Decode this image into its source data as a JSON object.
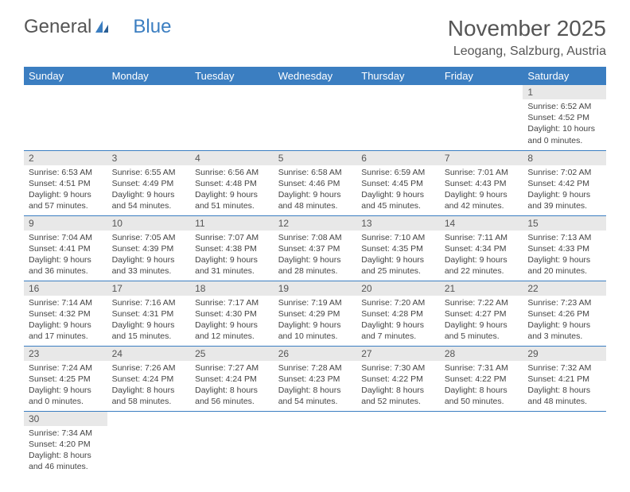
{
  "logo": {
    "text_general": "General",
    "text_blue": "Blue",
    "mark_color": "#3b7ec1"
  },
  "title": "November 2025",
  "location": "Leogang, Salzburg, Austria",
  "colors": {
    "header_bg": "#3b7ec1",
    "header_fg": "#ffffff",
    "daynum_bg": "#e8e8e8",
    "rule": "#3b7ec1"
  },
  "days_of_week": [
    "Sunday",
    "Monday",
    "Tuesday",
    "Wednesday",
    "Thursday",
    "Friday",
    "Saturday"
  ],
  "weeks": [
    [
      null,
      null,
      null,
      null,
      null,
      null,
      {
        "n": "1",
        "sr": "Sunrise: 6:52 AM",
        "ss": "Sunset: 4:52 PM",
        "dl1": "Daylight: 10 hours",
        "dl2": "and 0 minutes."
      }
    ],
    [
      {
        "n": "2",
        "sr": "Sunrise: 6:53 AM",
        "ss": "Sunset: 4:51 PM",
        "dl1": "Daylight: 9 hours",
        "dl2": "and 57 minutes."
      },
      {
        "n": "3",
        "sr": "Sunrise: 6:55 AM",
        "ss": "Sunset: 4:49 PM",
        "dl1": "Daylight: 9 hours",
        "dl2": "and 54 minutes."
      },
      {
        "n": "4",
        "sr": "Sunrise: 6:56 AM",
        "ss": "Sunset: 4:48 PM",
        "dl1": "Daylight: 9 hours",
        "dl2": "and 51 minutes."
      },
      {
        "n": "5",
        "sr": "Sunrise: 6:58 AM",
        "ss": "Sunset: 4:46 PM",
        "dl1": "Daylight: 9 hours",
        "dl2": "and 48 minutes."
      },
      {
        "n": "6",
        "sr": "Sunrise: 6:59 AM",
        "ss": "Sunset: 4:45 PM",
        "dl1": "Daylight: 9 hours",
        "dl2": "and 45 minutes."
      },
      {
        "n": "7",
        "sr": "Sunrise: 7:01 AM",
        "ss": "Sunset: 4:43 PM",
        "dl1": "Daylight: 9 hours",
        "dl2": "and 42 minutes."
      },
      {
        "n": "8",
        "sr": "Sunrise: 7:02 AM",
        "ss": "Sunset: 4:42 PM",
        "dl1": "Daylight: 9 hours",
        "dl2": "and 39 minutes."
      }
    ],
    [
      {
        "n": "9",
        "sr": "Sunrise: 7:04 AM",
        "ss": "Sunset: 4:41 PM",
        "dl1": "Daylight: 9 hours",
        "dl2": "and 36 minutes."
      },
      {
        "n": "10",
        "sr": "Sunrise: 7:05 AM",
        "ss": "Sunset: 4:39 PM",
        "dl1": "Daylight: 9 hours",
        "dl2": "and 33 minutes."
      },
      {
        "n": "11",
        "sr": "Sunrise: 7:07 AM",
        "ss": "Sunset: 4:38 PM",
        "dl1": "Daylight: 9 hours",
        "dl2": "and 31 minutes."
      },
      {
        "n": "12",
        "sr": "Sunrise: 7:08 AM",
        "ss": "Sunset: 4:37 PM",
        "dl1": "Daylight: 9 hours",
        "dl2": "and 28 minutes."
      },
      {
        "n": "13",
        "sr": "Sunrise: 7:10 AM",
        "ss": "Sunset: 4:35 PM",
        "dl1": "Daylight: 9 hours",
        "dl2": "and 25 minutes."
      },
      {
        "n": "14",
        "sr": "Sunrise: 7:11 AM",
        "ss": "Sunset: 4:34 PM",
        "dl1": "Daylight: 9 hours",
        "dl2": "and 22 minutes."
      },
      {
        "n": "15",
        "sr": "Sunrise: 7:13 AM",
        "ss": "Sunset: 4:33 PM",
        "dl1": "Daylight: 9 hours",
        "dl2": "and 20 minutes."
      }
    ],
    [
      {
        "n": "16",
        "sr": "Sunrise: 7:14 AM",
        "ss": "Sunset: 4:32 PM",
        "dl1": "Daylight: 9 hours",
        "dl2": "and 17 minutes."
      },
      {
        "n": "17",
        "sr": "Sunrise: 7:16 AM",
        "ss": "Sunset: 4:31 PM",
        "dl1": "Daylight: 9 hours",
        "dl2": "and 15 minutes."
      },
      {
        "n": "18",
        "sr": "Sunrise: 7:17 AM",
        "ss": "Sunset: 4:30 PM",
        "dl1": "Daylight: 9 hours",
        "dl2": "and 12 minutes."
      },
      {
        "n": "19",
        "sr": "Sunrise: 7:19 AM",
        "ss": "Sunset: 4:29 PM",
        "dl1": "Daylight: 9 hours",
        "dl2": "and 10 minutes."
      },
      {
        "n": "20",
        "sr": "Sunrise: 7:20 AM",
        "ss": "Sunset: 4:28 PM",
        "dl1": "Daylight: 9 hours",
        "dl2": "and 7 minutes."
      },
      {
        "n": "21",
        "sr": "Sunrise: 7:22 AM",
        "ss": "Sunset: 4:27 PM",
        "dl1": "Daylight: 9 hours",
        "dl2": "and 5 minutes."
      },
      {
        "n": "22",
        "sr": "Sunrise: 7:23 AM",
        "ss": "Sunset: 4:26 PM",
        "dl1": "Daylight: 9 hours",
        "dl2": "and 3 minutes."
      }
    ],
    [
      {
        "n": "23",
        "sr": "Sunrise: 7:24 AM",
        "ss": "Sunset: 4:25 PM",
        "dl1": "Daylight: 9 hours",
        "dl2": "and 0 minutes."
      },
      {
        "n": "24",
        "sr": "Sunrise: 7:26 AM",
        "ss": "Sunset: 4:24 PM",
        "dl1": "Daylight: 8 hours",
        "dl2": "and 58 minutes."
      },
      {
        "n": "25",
        "sr": "Sunrise: 7:27 AM",
        "ss": "Sunset: 4:24 PM",
        "dl1": "Daylight: 8 hours",
        "dl2": "and 56 minutes."
      },
      {
        "n": "26",
        "sr": "Sunrise: 7:28 AM",
        "ss": "Sunset: 4:23 PM",
        "dl1": "Daylight: 8 hours",
        "dl2": "and 54 minutes."
      },
      {
        "n": "27",
        "sr": "Sunrise: 7:30 AM",
        "ss": "Sunset: 4:22 PM",
        "dl1": "Daylight: 8 hours",
        "dl2": "and 52 minutes."
      },
      {
        "n": "28",
        "sr": "Sunrise: 7:31 AM",
        "ss": "Sunset: 4:22 PM",
        "dl1": "Daylight: 8 hours",
        "dl2": "and 50 minutes."
      },
      {
        "n": "29",
        "sr": "Sunrise: 7:32 AM",
        "ss": "Sunset: 4:21 PM",
        "dl1": "Daylight: 8 hours",
        "dl2": "and 48 minutes."
      }
    ],
    [
      {
        "n": "30",
        "sr": "Sunrise: 7:34 AM",
        "ss": "Sunset: 4:20 PM",
        "dl1": "Daylight: 8 hours",
        "dl2": "and 46 minutes."
      },
      null,
      null,
      null,
      null,
      null,
      null
    ]
  ]
}
